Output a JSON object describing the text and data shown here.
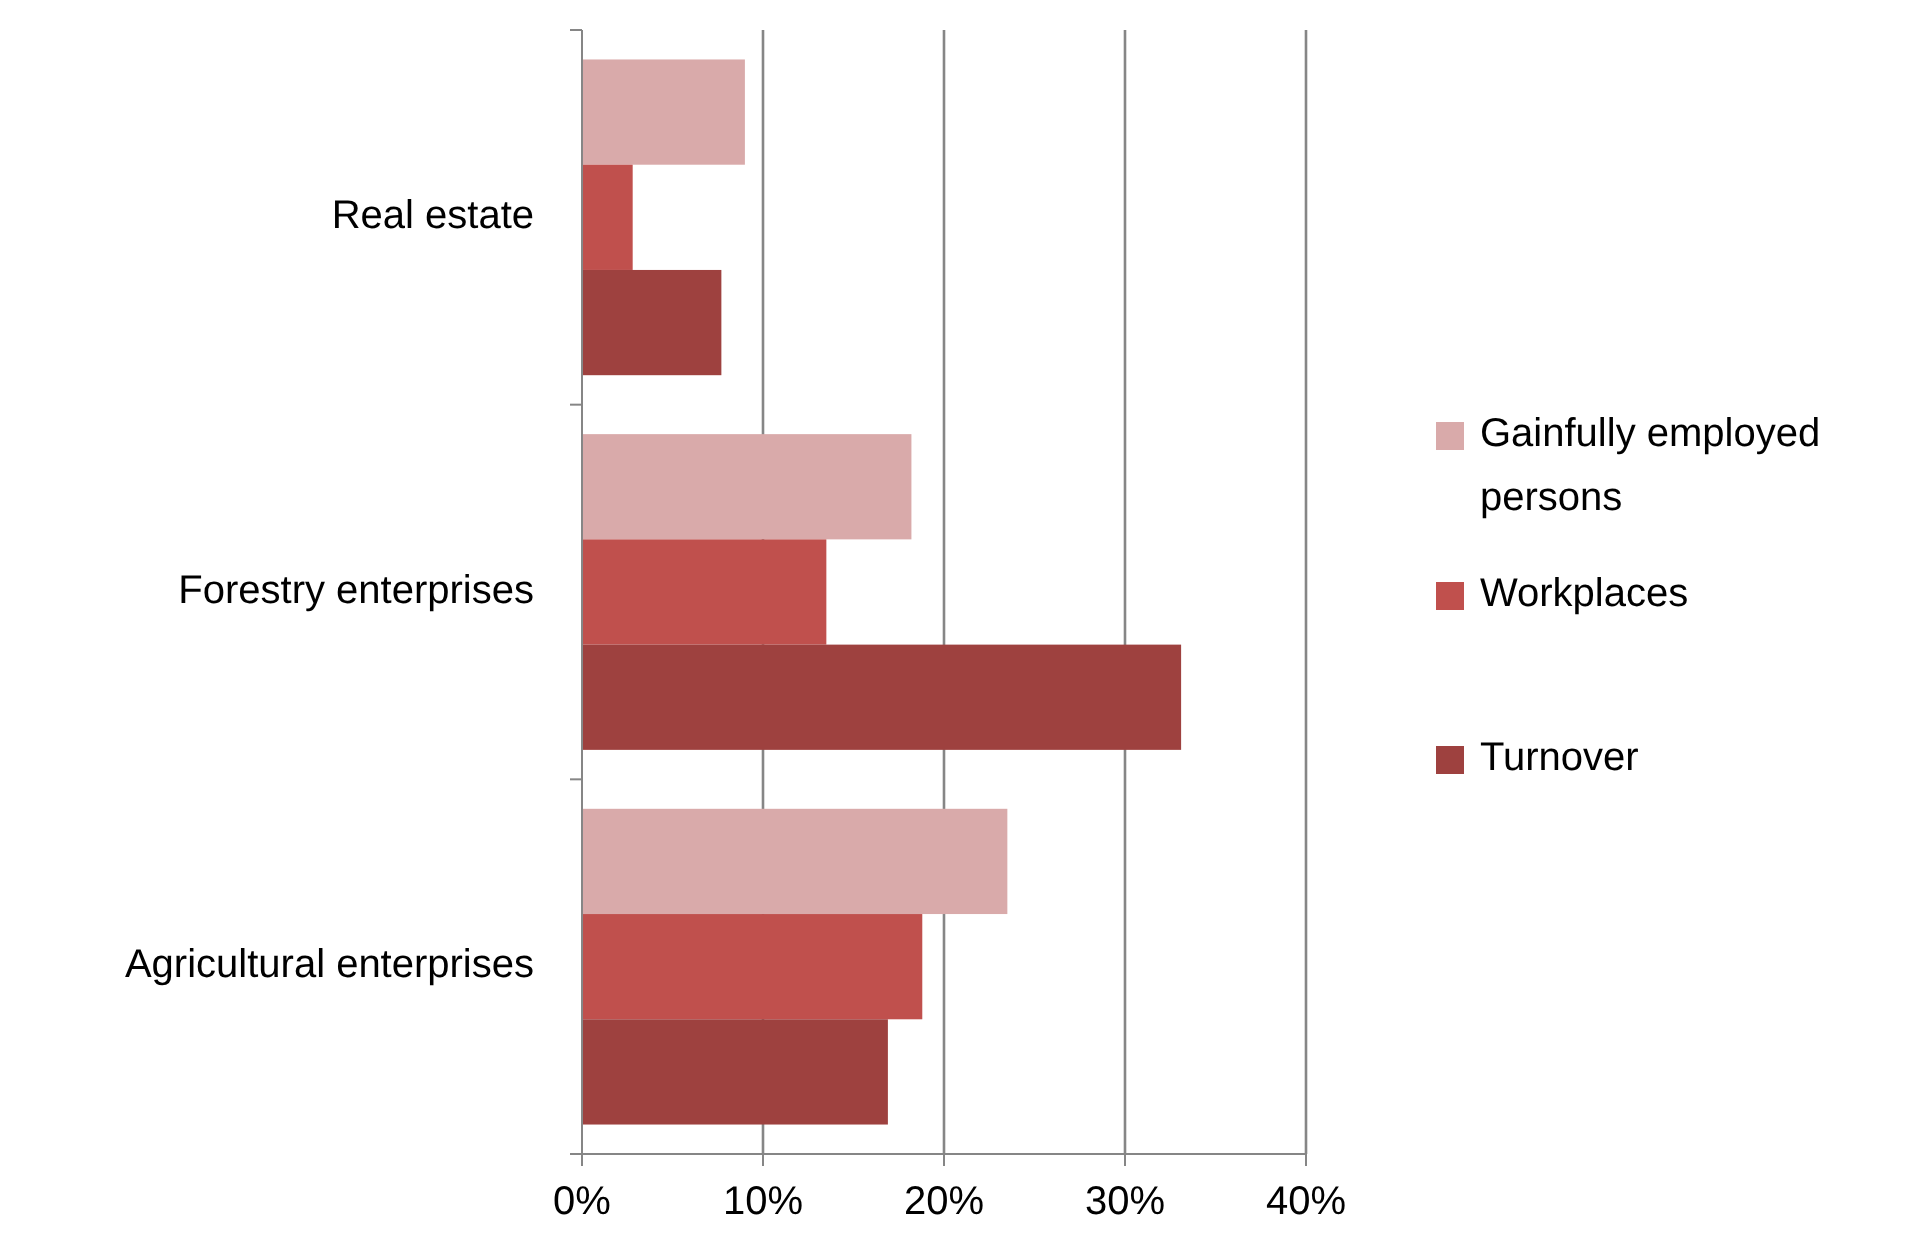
{
  "chart_data": {
    "type": "bar",
    "orientation": "horizontal",
    "categories": [
      "Real estate",
      "Forestry enterprises",
      "Agricultural enterprises"
    ],
    "series": [
      {
        "name": "Gainfully employed persons",
        "color": "#d9aaaa",
        "values": [
          9.0,
          18.2,
          23.5
        ]
      },
      {
        "name": "Workplaces",
        "color": "#c0504d",
        "values": [
          2.8,
          13.5,
          18.8
        ]
      },
      {
        "name": "Turnover",
        "color": "#9e413f",
        "values": [
          7.7,
          33.1,
          16.9
        ]
      }
    ],
    "xlim": [
      0,
      40
    ],
    "xticks": [
      {
        "value": 0,
        "label": "0%"
      },
      {
        "value": 10,
        "label": "10%"
      },
      {
        "value": 20,
        "label": "20%"
      },
      {
        "value": 30,
        "label": "30%"
      },
      {
        "value": 40,
        "label": "40%"
      }
    ],
    "grid": "x",
    "legend": "right"
  }
}
